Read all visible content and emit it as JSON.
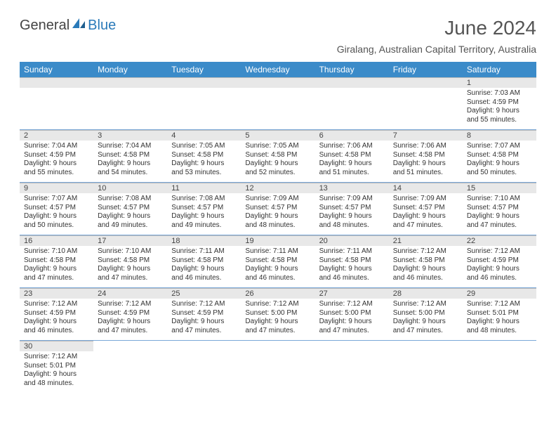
{
  "logo": {
    "text1": "General",
    "text2": "Blue"
  },
  "title": "June 2024",
  "location": "Giralang, Australian Capital Territory, Australia",
  "colors": {
    "header_bg": "#3b8bc9",
    "header_text": "#ffffff",
    "daynum_bg": "#e8e8e8",
    "row_border": "#7aa8d8",
    "logo_accent": "#2a7ab9"
  },
  "day_headers": [
    "Sunday",
    "Monday",
    "Tuesday",
    "Wednesday",
    "Thursday",
    "Friday",
    "Saturday"
  ],
  "weeks": [
    [
      null,
      null,
      null,
      null,
      null,
      null,
      {
        "n": "1",
        "sunrise": "Sunrise: 7:03 AM",
        "sunset": "Sunset: 4:59 PM",
        "daylight1": "Daylight: 9 hours",
        "daylight2": "and 55 minutes."
      }
    ],
    [
      {
        "n": "2",
        "sunrise": "Sunrise: 7:04 AM",
        "sunset": "Sunset: 4:59 PM",
        "daylight1": "Daylight: 9 hours",
        "daylight2": "and 55 minutes."
      },
      {
        "n": "3",
        "sunrise": "Sunrise: 7:04 AM",
        "sunset": "Sunset: 4:58 PM",
        "daylight1": "Daylight: 9 hours",
        "daylight2": "and 54 minutes."
      },
      {
        "n": "4",
        "sunrise": "Sunrise: 7:05 AM",
        "sunset": "Sunset: 4:58 PM",
        "daylight1": "Daylight: 9 hours",
        "daylight2": "and 53 minutes."
      },
      {
        "n": "5",
        "sunrise": "Sunrise: 7:05 AM",
        "sunset": "Sunset: 4:58 PM",
        "daylight1": "Daylight: 9 hours",
        "daylight2": "and 52 minutes."
      },
      {
        "n": "6",
        "sunrise": "Sunrise: 7:06 AM",
        "sunset": "Sunset: 4:58 PM",
        "daylight1": "Daylight: 9 hours",
        "daylight2": "and 51 minutes."
      },
      {
        "n": "7",
        "sunrise": "Sunrise: 7:06 AM",
        "sunset": "Sunset: 4:58 PM",
        "daylight1": "Daylight: 9 hours",
        "daylight2": "and 51 minutes."
      },
      {
        "n": "8",
        "sunrise": "Sunrise: 7:07 AM",
        "sunset": "Sunset: 4:58 PM",
        "daylight1": "Daylight: 9 hours",
        "daylight2": "and 50 minutes."
      }
    ],
    [
      {
        "n": "9",
        "sunrise": "Sunrise: 7:07 AM",
        "sunset": "Sunset: 4:57 PM",
        "daylight1": "Daylight: 9 hours",
        "daylight2": "and 50 minutes."
      },
      {
        "n": "10",
        "sunrise": "Sunrise: 7:08 AM",
        "sunset": "Sunset: 4:57 PM",
        "daylight1": "Daylight: 9 hours",
        "daylight2": "and 49 minutes."
      },
      {
        "n": "11",
        "sunrise": "Sunrise: 7:08 AM",
        "sunset": "Sunset: 4:57 PM",
        "daylight1": "Daylight: 9 hours",
        "daylight2": "and 49 minutes."
      },
      {
        "n": "12",
        "sunrise": "Sunrise: 7:09 AM",
        "sunset": "Sunset: 4:57 PM",
        "daylight1": "Daylight: 9 hours",
        "daylight2": "and 48 minutes."
      },
      {
        "n": "13",
        "sunrise": "Sunrise: 7:09 AM",
        "sunset": "Sunset: 4:57 PM",
        "daylight1": "Daylight: 9 hours",
        "daylight2": "and 48 minutes."
      },
      {
        "n": "14",
        "sunrise": "Sunrise: 7:09 AM",
        "sunset": "Sunset: 4:57 PM",
        "daylight1": "Daylight: 9 hours",
        "daylight2": "and 47 minutes."
      },
      {
        "n": "15",
        "sunrise": "Sunrise: 7:10 AM",
        "sunset": "Sunset: 4:57 PM",
        "daylight1": "Daylight: 9 hours",
        "daylight2": "and 47 minutes."
      }
    ],
    [
      {
        "n": "16",
        "sunrise": "Sunrise: 7:10 AM",
        "sunset": "Sunset: 4:58 PM",
        "daylight1": "Daylight: 9 hours",
        "daylight2": "and 47 minutes."
      },
      {
        "n": "17",
        "sunrise": "Sunrise: 7:10 AM",
        "sunset": "Sunset: 4:58 PM",
        "daylight1": "Daylight: 9 hours",
        "daylight2": "and 47 minutes."
      },
      {
        "n": "18",
        "sunrise": "Sunrise: 7:11 AM",
        "sunset": "Sunset: 4:58 PM",
        "daylight1": "Daylight: 9 hours",
        "daylight2": "and 46 minutes."
      },
      {
        "n": "19",
        "sunrise": "Sunrise: 7:11 AM",
        "sunset": "Sunset: 4:58 PM",
        "daylight1": "Daylight: 9 hours",
        "daylight2": "and 46 minutes."
      },
      {
        "n": "20",
        "sunrise": "Sunrise: 7:11 AM",
        "sunset": "Sunset: 4:58 PM",
        "daylight1": "Daylight: 9 hours",
        "daylight2": "and 46 minutes."
      },
      {
        "n": "21",
        "sunrise": "Sunrise: 7:12 AM",
        "sunset": "Sunset: 4:58 PM",
        "daylight1": "Daylight: 9 hours",
        "daylight2": "and 46 minutes."
      },
      {
        "n": "22",
        "sunrise": "Sunrise: 7:12 AM",
        "sunset": "Sunset: 4:59 PM",
        "daylight1": "Daylight: 9 hours",
        "daylight2": "and 46 minutes."
      }
    ],
    [
      {
        "n": "23",
        "sunrise": "Sunrise: 7:12 AM",
        "sunset": "Sunset: 4:59 PM",
        "daylight1": "Daylight: 9 hours",
        "daylight2": "and 46 minutes."
      },
      {
        "n": "24",
        "sunrise": "Sunrise: 7:12 AM",
        "sunset": "Sunset: 4:59 PM",
        "daylight1": "Daylight: 9 hours",
        "daylight2": "and 47 minutes."
      },
      {
        "n": "25",
        "sunrise": "Sunrise: 7:12 AM",
        "sunset": "Sunset: 4:59 PM",
        "daylight1": "Daylight: 9 hours",
        "daylight2": "and 47 minutes."
      },
      {
        "n": "26",
        "sunrise": "Sunrise: 7:12 AM",
        "sunset": "Sunset: 5:00 PM",
        "daylight1": "Daylight: 9 hours",
        "daylight2": "and 47 minutes."
      },
      {
        "n": "27",
        "sunrise": "Sunrise: 7:12 AM",
        "sunset": "Sunset: 5:00 PM",
        "daylight1": "Daylight: 9 hours",
        "daylight2": "and 47 minutes."
      },
      {
        "n": "28",
        "sunrise": "Sunrise: 7:12 AM",
        "sunset": "Sunset: 5:00 PM",
        "daylight1": "Daylight: 9 hours",
        "daylight2": "and 47 minutes."
      },
      {
        "n": "29",
        "sunrise": "Sunrise: 7:12 AM",
        "sunset": "Sunset: 5:01 PM",
        "daylight1": "Daylight: 9 hours",
        "daylight2": "and 48 minutes."
      }
    ],
    [
      {
        "n": "30",
        "sunrise": "Sunrise: 7:12 AM",
        "sunset": "Sunset: 5:01 PM",
        "daylight1": "Daylight: 9 hours",
        "daylight2": "and 48 minutes."
      },
      null,
      null,
      null,
      null,
      null,
      null
    ]
  ]
}
